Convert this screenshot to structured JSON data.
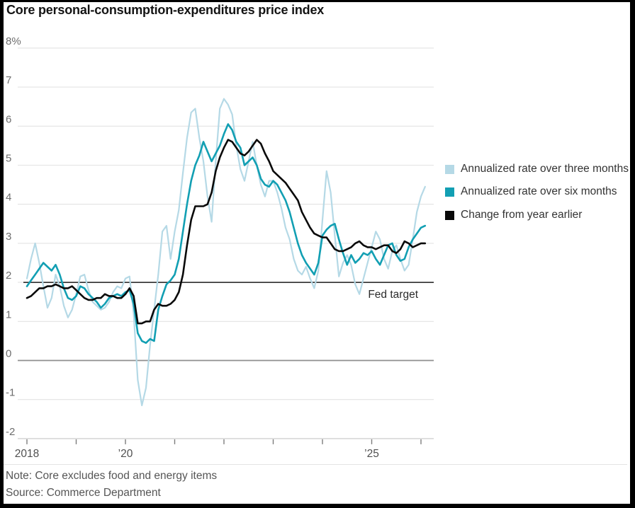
{
  "chart_data": {
    "type": "line",
    "title": "Core personal-consumption-expenditures price index",
    "frequency": "monthly",
    "x_start": "2018-01",
    "x_axis": {
      "ticks": [
        {
          "year": 2018,
          "label": "2018"
        },
        {
          "year": 2019,
          "label": ""
        },
        {
          "year": 2020,
          "label": "’20"
        },
        {
          "year": 2021,
          "label": ""
        },
        {
          "year": 2022,
          "label": ""
        },
        {
          "year": 2023,
          "label": ""
        },
        {
          "year": 2024,
          "label": ""
        },
        {
          "year": 2025,
          "label": "’25"
        },
        {
          "year": 2026,
          "label": ""
        }
      ]
    },
    "y_axis": {
      "ylim": [
        -2,
        8
      ],
      "ticks": [
        {
          "value": 8,
          "label": "8%"
        },
        {
          "value": 7,
          "label": "7"
        },
        {
          "value": 6,
          "label": "6"
        },
        {
          "value": 5,
          "label": "5"
        },
        {
          "value": 4,
          "label": "4"
        },
        {
          "value": 3,
          "label": "3"
        },
        {
          "value": 2,
          "label": "2"
        },
        {
          "value": 1,
          "label": "1"
        },
        {
          "value": 0,
          "label": "0"
        },
        {
          "value": -1,
          "label": "-1"
        },
        {
          "value": -2,
          "label": "-2"
        }
      ]
    },
    "reference_line": {
      "value": 2,
      "label": "Fed target",
      "color": "#1a1a1a"
    },
    "zero_line_color": "#8f8f8f",
    "grid_color": "#e3e3e3",
    "series": [
      {
        "name": "Annualized rate over three months",
        "color": "#b5d9e6",
        "width": 2.2,
        "values": [
          2.1,
          2.6,
          3.0,
          2.5,
          1.9,
          1.35,
          1.6,
          2.2,
          1.9,
          1.4,
          1.1,
          1.3,
          1.7,
          2.15,
          2.2,
          1.8,
          1.5,
          1.4,
          1.3,
          1.35,
          1.5,
          1.75,
          1.9,
          1.85,
          2.1,
          2.15,
          1.2,
          -0.5,
          -1.15,
          -0.7,
          0.4,
          1.3,
          2.2,
          3.3,
          3.45,
          2.6,
          3.3,
          3.85,
          4.8,
          5.7,
          6.35,
          6.45,
          5.7,
          5.1,
          4.2,
          3.55,
          5.1,
          6.45,
          6.7,
          6.55,
          6.3,
          5.5,
          4.9,
          4.6,
          5.1,
          5.6,
          5.0,
          4.5,
          4.2,
          4.6,
          4.6,
          4.3,
          3.9,
          3.4,
          3.1,
          2.6,
          2.3,
          2.2,
          2.4,
          2.1,
          1.85,
          2.3,
          3.6,
          4.85,
          4.3,
          3.2,
          2.15,
          2.5,
          2.7,
          2.45,
          1.95,
          1.7,
          2.1,
          2.5,
          2.9,
          3.3,
          3.1,
          2.6,
          2.35,
          2.8,
          2.95,
          2.6,
          2.3,
          2.45,
          3.1,
          3.8,
          4.2,
          4.45
        ]
      },
      {
        "name": "Annualized rate over six months",
        "color": "#129fb3",
        "width": 2.6,
        "values": [
          1.9,
          2.05,
          2.2,
          2.35,
          2.5,
          2.4,
          2.3,
          2.45,
          2.2,
          1.85,
          1.6,
          1.55,
          1.65,
          1.9,
          1.85,
          1.7,
          1.6,
          1.5,
          1.35,
          1.45,
          1.6,
          1.65,
          1.7,
          1.65,
          1.75,
          1.8,
          1.45,
          0.7,
          0.5,
          0.45,
          0.55,
          0.5,
          1.3,
          1.65,
          1.95,
          2.05,
          2.2,
          2.6,
          3.3,
          4.0,
          4.6,
          5.0,
          5.25,
          5.6,
          5.35,
          5.1,
          5.3,
          5.5,
          5.8,
          6.05,
          5.9,
          5.6,
          5.45,
          5.0,
          5.1,
          5.2,
          5.0,
          4.65,
          4.5,
          4.45,
          4.6,
          4.5,
          4.3,
          4.1,
          3.8,
          3.4,
          3.0,
          2.7,
          2.5,
          2.35,
          2.2,
          2.5,
          3.2,
          3.35,
          3.45,
          3.5,
          3.1,
          2.75,
          2.45,
          2.7,
          2.5,
          2.6,
          2.75,
          2.7,
          2.8,
          2.6,
          2.45,
          2.7,
          2.95,
          3.0,
          2.7,
          2.55,
          2.6,
          2.9,
          3.1,
          3.25,
          3.4,
          3.45
        ]
      },
      {
        "name": "Change from year earlier",
        "color": "#0a0a0a",
        "width": 2.6,
        "values": [
          1.6,
          1.65,
          1.75,
          1.85,
          1.85,
          1.9,
          1.9,
          1.95,
          1.9,
          1.85,
          1.85,
          1.9,
          1.8,
          1.7,
          1.6,
          1.55,
          1.55,
          1.6,
          1.6,
          1.7,
          1.65,
          1.65,
          1.6,
          1.6,
          1.7,
          1.85,
          1.65,
          0.95,
          0.95,
          1.0,
          1.0,
          1.3,
          1.45,
          1.4,
          1.4,
          1.45,
          1.55,
          1.75,
          2.2,
          2.95,
          3.6,
          3.95,
          3.95,
          3.95,
          4.0,
          4.3,
          4.85,
          5.2,
          5.45,
          5.65,
          5.6,
          5.45,
          5.3,
          5.25,
          5.35,
          5.5,
          5.65,
          5.55,
          5.3,
          5.1,
          4.85,
          4.75,
          4.65,
          4.55,
          4.4,
          4.25,
          4.1,
          3.8,
          3.6,
          3.4,
          3.25,
          3.2,
          3.15,
          3.15,
          3.0,
          2.85,
          2.8,
          2.8,
          2.85,
          2.9,
          3.0,
          3.05,
          2.95,
          2.9,
          2.9,
          2.85,
          2.9,
          2.95,
          2.95,
          2.8,
          2.75,
          2.85,
          3.05,
          3.0,
          2.9,
          2.95,
          3.0,
          3.0
        ]
      }
    ],
    "legend_position": "right"
  },
  "footer": {
    "note": "Note: Core excludes food and energy items",
    "source": "Source: Commerce Department"
  }
}
